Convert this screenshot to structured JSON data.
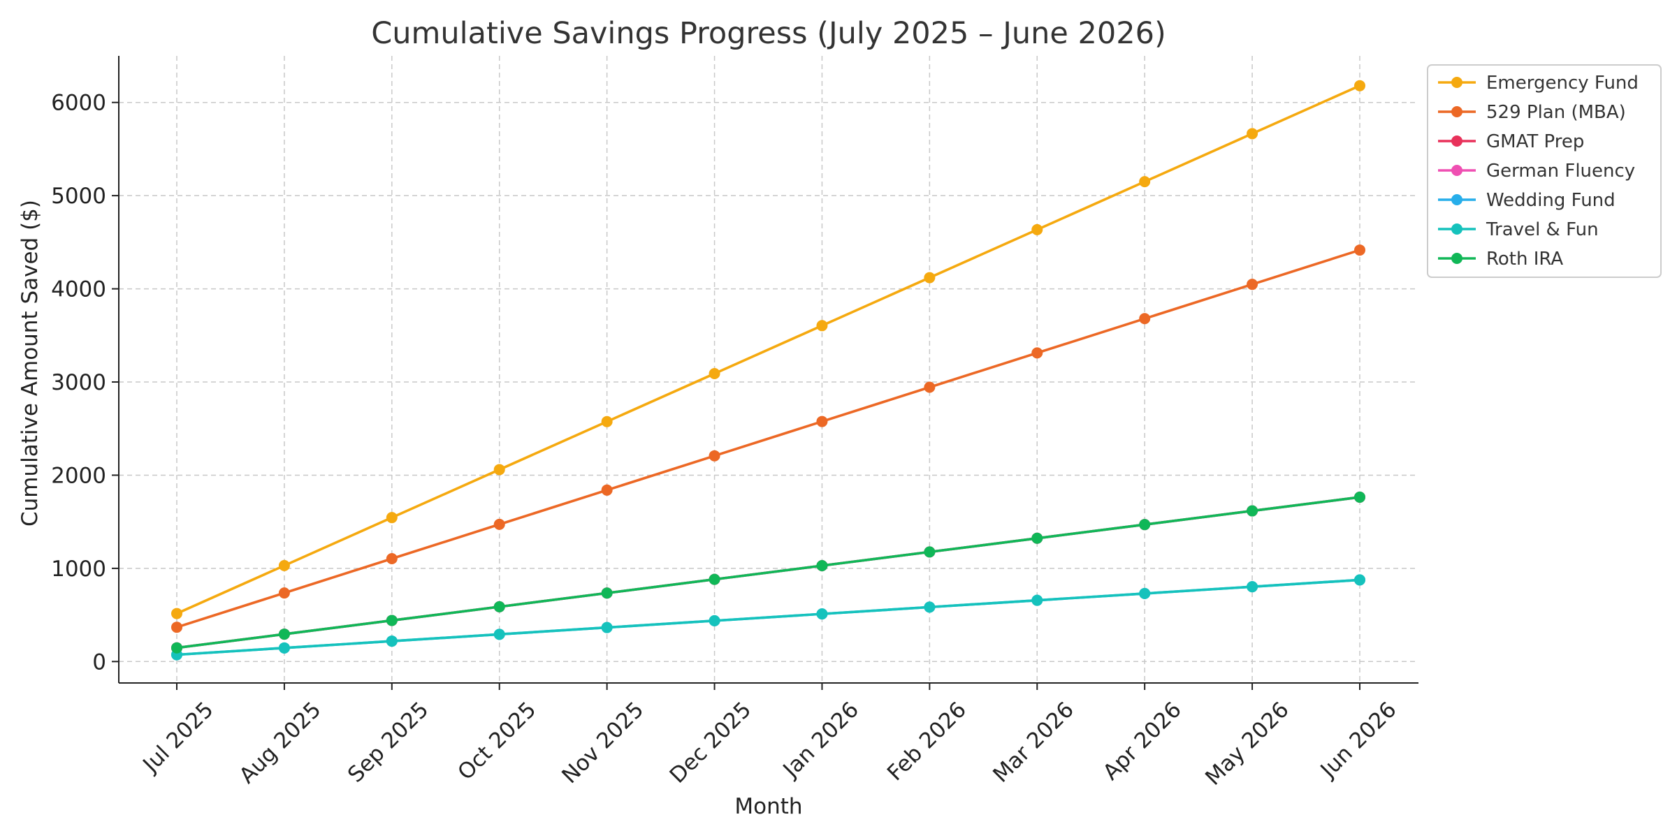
{
  "chart_data": {
    "type": "line",
    "title": "Cumulative Savings Progress (July 2025 – June 2026)",
    "xlabel": "Month",
    "ylabel": "Cumulative Amount Saved ($)",
    "ylim": [
      -230,
      6500
    ],
    "yticks": [
      0,
      1000,
      2000,
      3000,
      4000,
      5000,
      6000
    ],
    "grid": true,
    "legend_position": "outside-top-right",
    "categories": [
      "Jul 2025",
      "Aug 2025",
      "Sep 2025",
      "Oct 2025",
      "Nov 2025",
      "Dec 2025",
      "Jan 2026",
      "Feb 2026",
      "Mar 2026",
      "Apr 2026",
      "May 2026",
      "Jun 2026"
    ],
    "series": [
      {
        "name": "Emergency Fund",
        "color": "#f5a90f",
        "values": [
          515,
          1030,
          1545,
          2060,
          2575,
          3090,
          3605,
          4120,
          4635,
          5150,
          5665,
          6180
        ]
      },
      {
        "name": "529 Plan (MBA)",
        "color": "#ec6825",
        "values": [
          368,
          736,
          1104,
          1472,
          1840,
          2208,
          2576,
          2944,
          3312,
          3680,
          4048,
          4416
        ]
      },
      {
        "name": "GMAT Prep",
        "color": "#e8315a",
        "values": [
          147,
          294,
          441,
          588,
          735,
          882,
          1029,
          1176,
          1323,
          1470,
          1617,
          1764
        ]
      },
      {
        "name": "German Fluency",
        "color": "#ef4fb2",
        "values": [
          147,
          294,
          441,
          588,
          735,
          882,
          1029,
          1176,
          1323,
          1470,
          1617,
          1764
        ]
      },
      {
        "name": "Wedding Fund",
        "color": "#27aeea",
        "values": [
          73,
          146,
          219,
          292,
          365,
          438,
          511,
          584,
          657,
          730,
          803,
          876
        ]
      },
      {
        "name": "Travel & Fun",
        "color": "#15c2bc",
        "values": [
          73,
          146,
          219,
          292,
          365,
          438,
          511,
          584,
          657,
          730,
          803,
          876
        ]
      },
      {
        "name": "Roth IRA",
        "color": "#10b757",
        "values": [
          147,
          294,
          441,
          588,
          735,
          882,
          1029,
          1176,
          1323,
          1470,
          1617,
          1764
        ]
      }
    ]
  }
}
